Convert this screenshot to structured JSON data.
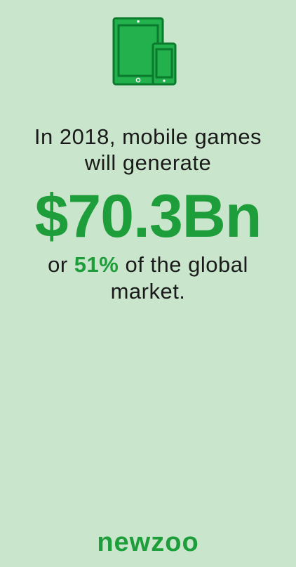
{
  "icon": "tablet-and-phone-icon",
  "colors": {
    "background": "#c9e5cc",
    "accent": "#1e9e3a",
    "text": "#1a1a1a"
  },
  "intro": {
    "line1": "In 2018, mobile games",
    "line2": "will generate"
  },
  "amount": "$70.3Bn",
  "share": {
    "prefix": "or ",
    "percent": "51%",
    "suffix": " of the global",
    "line2": "market."
  },
  "brand": {
    "logo": "newzoo"
  }
}
